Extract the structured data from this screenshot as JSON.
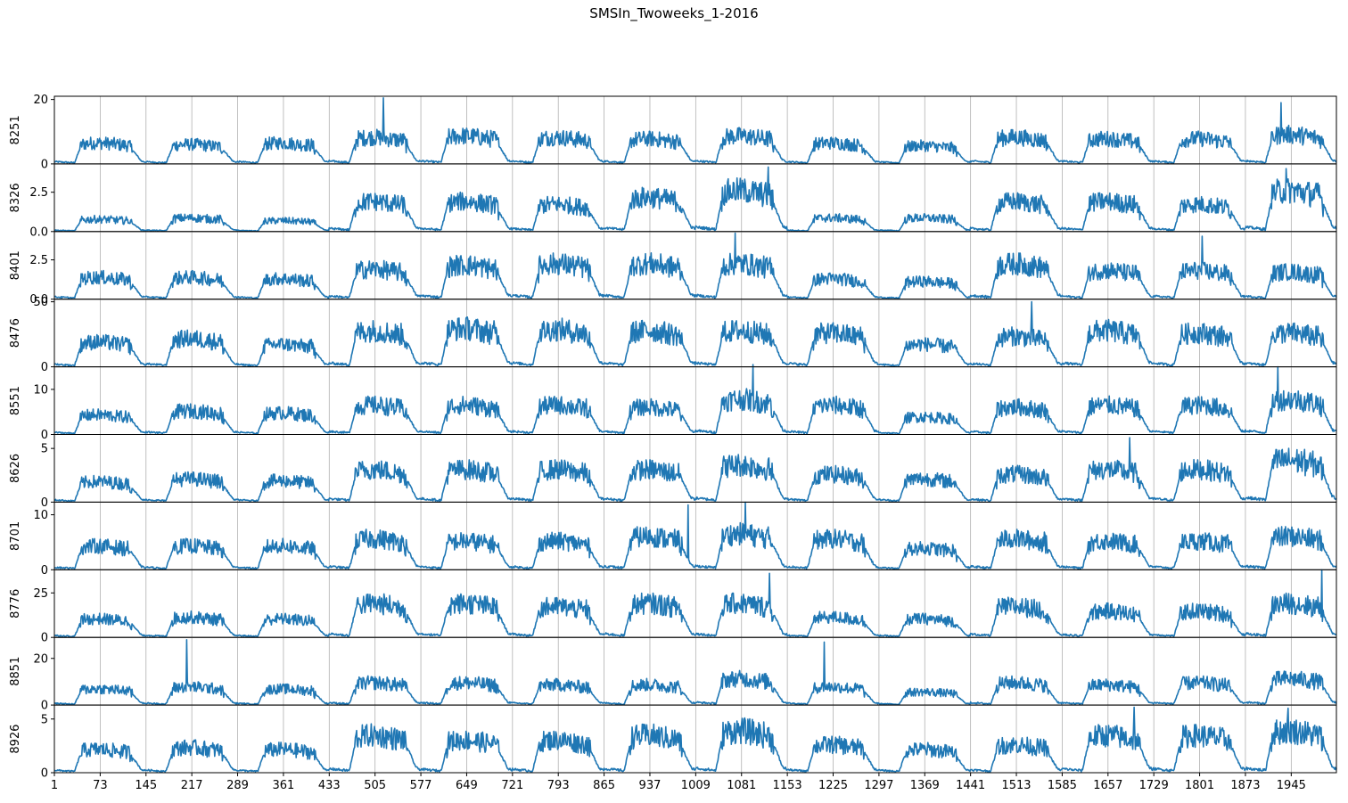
{
  "title": "SMSIn_Twoweeks_1-2016",
  "chart_data": {
    "type": "line",
    "title": "SMSIn_Twoweeks_1-2016",
    "xlim": [
      1,
      2016
    ],
    "x_ticks": [
      1,
      73,
      145,
      217,
      289,
      361,
      433,
      505,
      577,
      649,
      721,
      793,
      865,
      937,
      1009,
      1081,
      1153,
      1225,
      1297,
      1369,
      1441,
      1513,
      1585,
      1657,
      1729,
      1801,
      1873,
      1945
    ],
    "grid": "vertical",
    "line_color": "#1f77b4",
    "sampling": "daily profile, estimated peak level per day (14 days x 144 samples)",
    "day_starts": [
      1,
      145,
      289,
      433,
      577,
      721,
      865,
      1009,
      1153,
      1297,
      1441,
      1585,
      1729,
      1873
    ],
    "panels": [
      {
        "ylabel": "8251",
        "ylim": [
          0,
          21
        ],
        "yticks": [
          0,
          20
        ],
        "ytick_labels": [
          "0",
          "20"
        ],
        "daily_peak": [
          7.5,
          7,
          7.5,
          9.5,
          10,
          9.5,
          9,
          10,
          7.5,
          6.5,
          9.5,
          9,
          9,
          10.5
        ],
        "spikes": [
          {
            "x": 518,
            "y": 20.5
          },
          {
            "x": 1929,
            "y": 19
          }
        ]
      },
      {
        "ylabel": "8326",
        "ylim": [
          0,
          4.3
        ],
        "yticks": [
          0,
          2.5
        ],
        "ytick_labels": [
          "0.0",
          "2.5"
        ],
        "daily_peak": [
          0.9,
          1.0,
          0.8,
          2.2,
          2.2,
          2.0,
          2.5,
          3.0,
          1.0,
          1.0,
          2.2,
          2.2,
          2.0,
          3.0
        ],
        "spikes": [
          {
            "x": 1123,
            "y": 4.1
          },
          {
            "x": 1937,
            "y": 4.0
          }
        ]
      },
      {
        "ylabel": "8401",
        "ylim": [
          0,
          4.3
        ],
        "yticks": [
          0,
          2.5
        ],
        "ytick_labels": [
          "0.0",
          "2.5"
        ],
        "daily_peak": [
          1.6,
          1.6,
          1.5,
          2.2,
          2.5,
          2.6,
          2.6,
          2.6,
          1.5,
          1.3,
          2.6,
          2.1,
          2.1,
          2.0
        ],
        "spikes": [
          {
            "x": 1071,
            "y": 4.2
          },
          {
            "x": 1805,
            "y": 4.0
          }
        ]
      },
      {
        "ylabel": "8476",
        "ylim": [
          0,
          52
        ],
        "yticks": [
          0,
          50
        ],
        "ytick_labels": [
          "0",
          "50"
        ],
        "daily_peak": [
          22,
          25,
          20,
          32,
          34,
          33,
          32,
          32,
          30,
          20,
          27,
          32,
          30,
          30
        ],
        "spikes": [
          {
            "x": 1537,
            "y": 50
          }
        ]
      },
      {
        "ylabel": "8551",
        "ylim": [
          0,
          15
        ],
        "yticks": [
          0,
          10
        ],
        "ytick_labels": [
          "0",
          "10"
        ],
        "daily_peak": [
          5,
          6,
          5.5,
          7.5,
          7.5,
          7.5,
          7,
          9,
          7.5,
          4.5,
          7,
          7.5,
          7.5,
          9
        ],
        "spikes": [
          {
            "x": 1099,
            "y": 15.5
          },
          {
            "x": 1924,
            "y": 15
          }
        ]
      },
      {
        "ylabel": "8626",
        "ylim": [
          0,
          6.3
        ],
        "yticks": [
          0,
          5
        ],
        "ytick_labels": [
          "0",
          "5"
        ],
        "daily_peak": [
          2.2,
          2.5,
          2.3,
          3.5,
          3.5,
          3.5,
          3.5,
          4,
          3,
          2.5,
          3,
          3.5,
          3.5,
          4.5
        ],
        "spikes": [
          {
            "x": 1691,
            "y": 6.0
          }
        ]
      },
      {
        "ylabel": "8701",
        "ylim": [
          0,
          12.3
        ],
        "yticks": [
          0,
          10
        ],
        "ytick_labels": [
          "0",
          "10"
        ],
        "daily_peak": [
          5,
          5,
          5,
          6.5,
          6,
          6,
          7,
          7.5,
          6.5,
          4.5,
          6.5,
          6,
          6,
          7
        ],
        "spikes": [
          {
            "x": 997,
            "y": 11.8
          },
          {
            "x": 1087,
            "y": 12.3
          }
        ]
      },
      {
        "ylabel": "8776",
        "ylim": [
          0,
          38
        ],
        "yticks": [
          0,
          25
        ],
        "ytick_labels": [
          "0",
          "25"
        ],
        "daily_peak": [
          12,
          13,
          12,
          22,
          22,
          20,
          22,
          22,
          13,
          12,
          20,
          17,
          17,
          22
        ],
        "spikes": [
          {
            "x": 1125,
            "y": 36
          },
          {
            "x": 1993,
            "y": 38
          }
        ]
      },
      {
        "ylabel": "8851",
        "ylim": [
          0,
          29
        ],
        "yticks": [
          0,
          20
        ],
        "ytick_labels": [
          "0",
          "20"
        ],
        "daily_peak": [
          8,
          9,
          8,
          11,
          11,
          10,
          10,
          13,
          9,
          6.5,
          11,
          10,
          11,
          13
        ],
        "spikes": [
          {
            "x": 209,
            "y": 28
          },
          {
            "x": 1211,
            "y": 27
          }
        ]
      },
      {
        "ylabel": "8926",
        "ylim": [
          0,
          6.3
        ],
        "yticks": [
          0,
          5
        ],
        "ytick_labels": [
          "0",
          "5"
        ],
        "daily_peak": [
          2.5,
          2.7,
          2.5,
          4,
          3.5,
          3.5,
          4,
          4.5,
          3,
          2.5,
          3,
          4,
          4,
          4.5
        ],
        "spikes": [
          {
            "x": 1698,
            "y": 6.1
          },
          {
            "x": 1940,
            "y": 6.0
          }
        ]
      }
    ]
  }
}
